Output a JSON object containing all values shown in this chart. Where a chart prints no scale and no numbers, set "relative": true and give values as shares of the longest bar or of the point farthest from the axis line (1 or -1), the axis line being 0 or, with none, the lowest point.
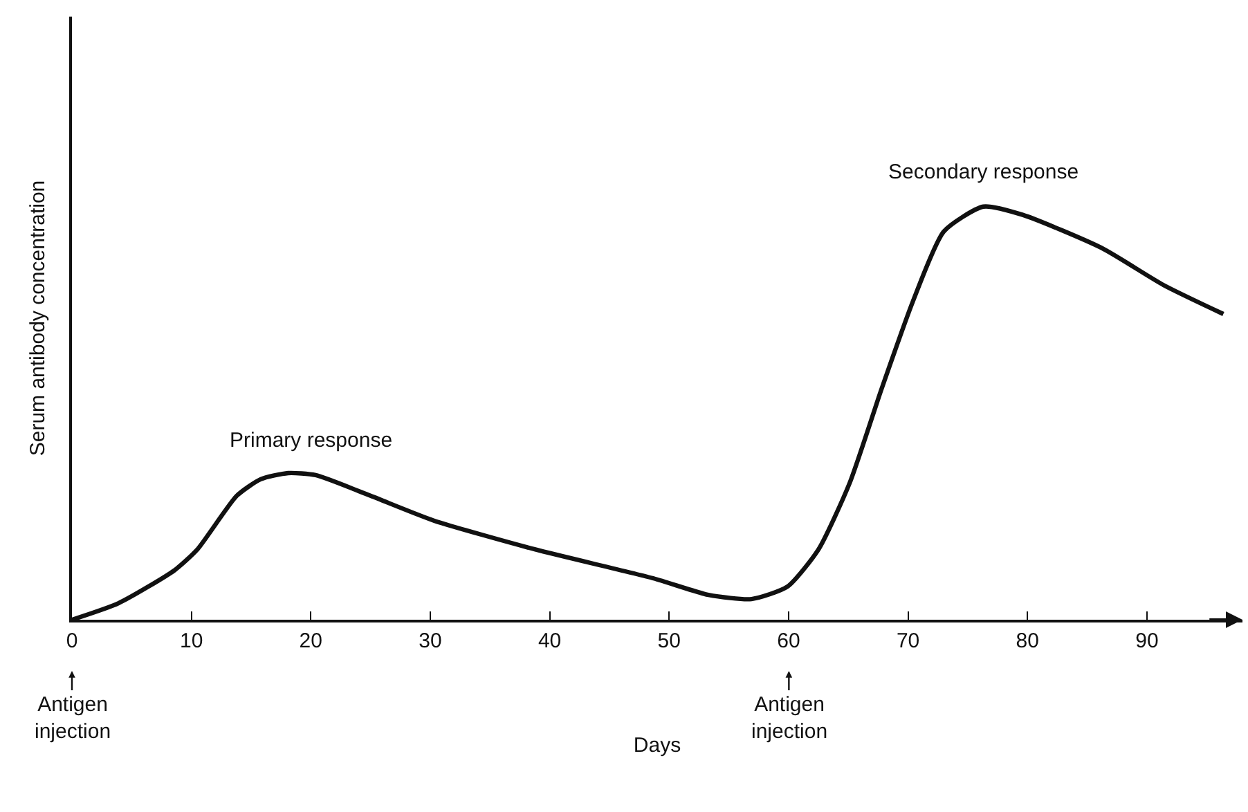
{
  "chart_data": {
    "type": "line",
    "relative": true,
    "xlabel": "Days",
    "ylabel": "Serum antibody concentration",
    "x": [
      0,
      3.9,
      8.6,
      10.5,
      13.8,
      15.8,
      18.1,
      20.4,
      25,
      30.3,
      38.8,
      48.7,
      53.3,
      56.9,
      59.9,
      62.5,
      65.1,
      67.8,
      70.4,
      73,
      76.3,
      79.6,
      86.2,
      91.4,
      96.4
    ],
    "series": [
      {
        "color": "#111111",
        "values": [
          0,
          0.04,
          0.12,
          0.17,
          0.3,
          0.34,
          0.355,
          0.35,
          0.3,
          0.24,
          0.17,
          0.1,
          0.06,
          0.05,
          0.08,
          0.17,
          0.33,
          0.56,
          0.77,
          0.94,
          1,
          0.98,
          0.9,
          0.81,
          0.74
        ]
      }
    ],
    "xlim": [
      0,
      98
    ],
    "xticks": [
      0,
      10,
      20,
      30,
      40,
      50,
      60,
      70,
      80,
      90
    ],
    "annotations": [
      {
        "text": "Primary response",
        "x": 20,
        "y": 0.35
      },
      {
        "text": "Secondary response",
        "x": 76.3,
        "y": 1
      },
      "Antigen injection",
      "Antigen injection"
    ],
    "grid": false,
    "marker": "none",
    "line_style": "solid"
  }
}
